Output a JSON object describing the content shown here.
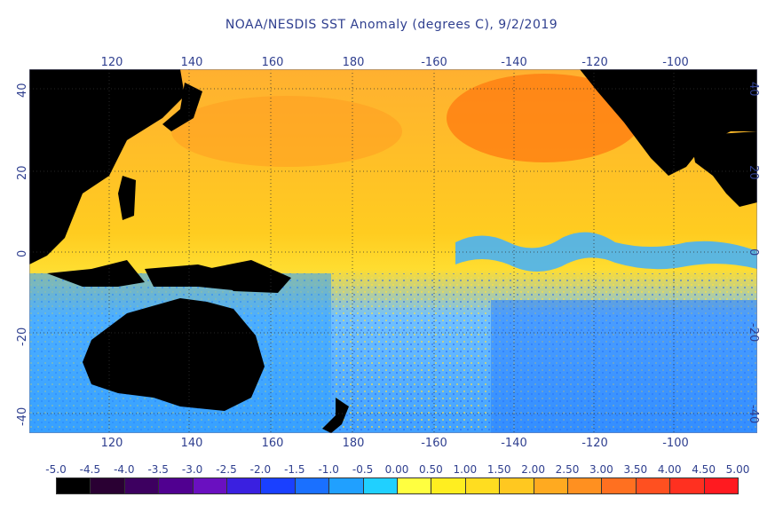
{
  "title": "NOAA/NESDIS SST Anomaly (degrees C), 9/2/2019",
  "axes": {
    "lon_ticks": [
      "120",
      "140",
      "160",
      "180",
      "-160",
      "-140",
      "-120",
      "-100"
    ],
    "lat_ticks": [
      "40",
      "20",
      "0",
      "-20",
      "-40"
    ]
  },
  "colorbar": {
    "labels": [
      "-5.0",
      "-4.5",
      "-4.0",
      "-3.5",
      "-3.0",
      "-2.5",
      "-2.0",
      "-1.5",
      "-1.0",
      "-0.5",
      "0.00",
      "0.50",
      "1.00",
      "1.50",
      "2.00",
      "2.50",
      "3.00",
      "3.50",
      "4.00",
      "4.50",
      "5.00"
    ],
    "colors": [
      "#000000",
      "#2a0033",
      "#3d0060",
      "#500090",
      "#6a10c0",
      "#3a20e0",
      "#1a40ff",
      "#1a70ff",
      "#20a0ff",
      "#20d0ff",
      "#ffff40",
      "#ffee20",
      "#ffdd20",
      "#ffc820",
      "#ffaa20",
      "#ff9020",
      "#ff7020",
      "#ff5020",
      "#ff3020",
      "#ff1a20"
    ]
  },
  "colors": {
    "land": "#000000",
    "warm": "#ffb020",
    "hot": "#ff6a10",
    "cool": "#40b0ff",
    "cold": "#1a60ff",
    "neutral": "#ffe030"
  }
}
